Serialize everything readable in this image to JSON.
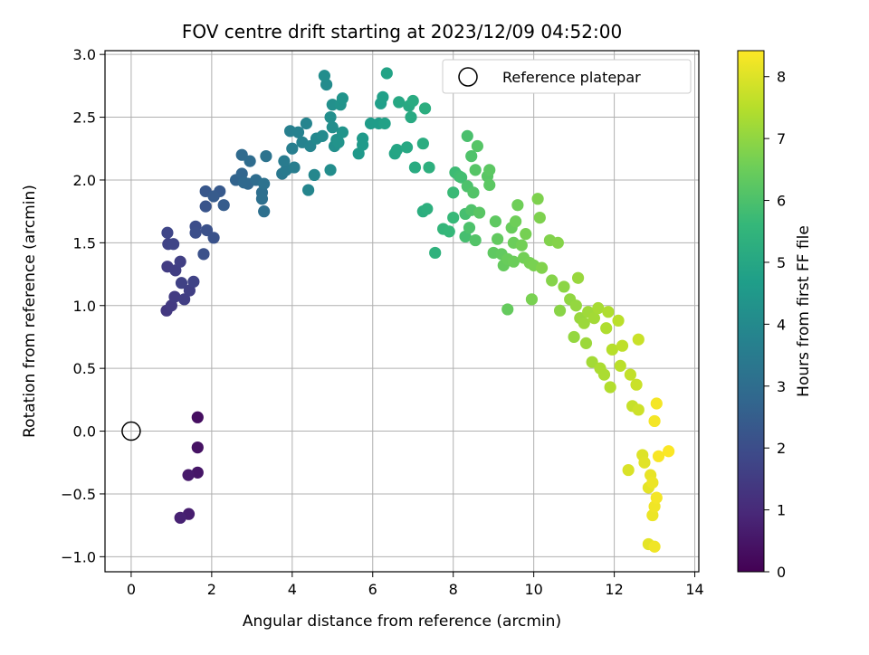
{
  "chart_data": {
    "type": "scatter",
    "title": "FOV centre drift starting at 2023/12/09 04:52:00",
    "xlabel": "Angular distance from reference (arcmin)",
    "ylabel": "Rotation from reference (arcmin)",
    "xlim": [
      -0.65,
      14.1
    ],
    "ylim": [
      -1.12,
      3.03
    ],
    "xticks": [
      0,
      2,
      4,
      6,
      8,
      10,
      12,
      14
    ],
    "xtick_labels": [
      "0",
      "2",
      "4",
      "6",
      "8",
      "10",
      "12",
      "14"
    ],
    "yticks": [
      -1.0,
      -0.5,
      0.0,
      0.5,
      1.0,
      1.5,
      2.0,
      2.5,
      3.0
    ],
    "ytick_labels": [
      "−1.0",
      "−0.5",
      "0.0",
      "0.5",
      "1.0",
      "1.5",
      "2.0",
      "2.5",
      "3.0"
    ],
    "grid": true,
    "legend": {
      "position": "upper-right",
      "entries": [
        "Reference platepar"
      ]
    },
    "reference_point": {
      "x": 0.0,
      "y": 0.0,
      "marker": "open-circle",
      "color": "#000000"
    },
    "colorbar": {
      "label": "Hours from first FF file",
      "range": [
        0,
        8.42
      ],
      "ticks": [
        0,
        1,
        2,
        3,
        4,
        5,
        6,
        7,
        8
      ],
      "tick_labels": [
        "0",
        "1",
        "2",
        "3",
        "4",
        "5",
        "6",
        "7",
        "8"
      ],
      "colormap": "viridis",
      "colormap_stops": [
        "#440154",
        "#482878",
        "#3e4989",
        "#31688e",
        "#26828e",
        "#1f9e89",
        "#35b779",
        "#6ece58",
        "#b5de2b",
        "#fde725"
      ]
    },
    "series": [
      {
        "points": [
          {
            "x": 1.65,
            "y": 0.11,
            "t": 0.3
          },
          {
            "x": 1.65,
            "y": -0.13,
            "t": 0.4
          },
          {
            "x": 1.65,
            "y": -0.33,
            "t": 0.5
          },
          {
            "x": 1.42,
            "y": -0.35,
            "t": 0.6
          },
          {
            "x": 1.43,
            "y": -0.66,
            "t": 0.7
          },
          {
            "x": 1.22,
            "y": -0.69,
            "t": 0.8
          },
          {
            "x": 0.88,
            "y": 0.96,
            "t": 1.4
          },
          {
            "x": 1.0,
            "y": 1.0,
            "t": 1.45
          },
          {
            "x": 1.08,
            "y": 1.07,
            "t": 1.5
          },
          {
            "x": 1.32,
            "y": 1.05,
            "t": 1.55
          },
          {
            "x": 1.45,
            "y": 1.12,
            "t": 1.6
          },
          {
            "x": 1.25,
            "y": 1.18,
            "t": 1.65
          },
          {
            "x": 1.55,
            "y": 1.19,
            "t": 1.7
          },
          {
            "x": 0.9,
            "y": 1.31,
            "t": 1.5
          },
          {
            "x": 1.1,
            "y": 1.28,
            "t": 1.55
          },
          {
            "x": 1.22,
            "y": 1.35,
            "t": 1.6
          },
          {
            "x": 0.92,
            "y": 1.49,
            "t": 1.7
          },
          {
            "x": 1.05,
            "y": 1.49,
            "t": 1.75
          },
          {
            "x": 0.9,
            "y": 1.58,
            "t": 1.8
          },
          {
            "x": 1.6,
            "y": 1.63,
            "t": 2.0
          },
          {
            "x": 1.6,
            "y": 1.58,
            "t": 2.05
          },
          {
            "x": 1.88,
            "y": 1.6,
            "t": 2.1
          },
          {
            "x": 2.05,
            "y": 1.54,
            "t": 2.15
          },
          {
            "x": 1.8,
            "y": 1.41,
            "t": 2.1
          },
          {
            "x": 1.85,
            "y": 1.79,
            "t": 2.2
          },
          {
            "x": 1.85,
            "y": 1.91,
            "t": 2.3
          },
          {
            "x": 2.2,
            "y": 1.91,
            "t": 2.35
          },
          {
            "x": 2.05,
            "y": 1.87,
            "t": 2.4
          },
          {
            "x": 2.3,
            "y": 1.8,
            "t": 2.45
          },
          {
            "x": 2.6,
            "y": 2.0,
            "t": 2.7
          },
          {
            "x": 2.75,
            "y": 2.05,
            "t": 2.75
          },
          {
            "x": 2.9,
            "y": 1.97,
            "t": 2.8
          },
          {
            "x": 2.8,
            "y": 1.98,
            "t": 2.85
          },
          {
            "x": 2.75,
            "y": 2.2,
            "t": 2.9
          },
          {
            "x": 2.95,
            "y": 2.15,
            "t": 2.95
          },
          {
            "x": 3.1,
            "y": 2.0,
            "t": 3.0
          },
          {
            "x": 3.25,
            "y": 1.9,
            "t": 3.05
          },
          {
            "x": 3.25,
            "y": 1.85,
            "t": 3.1
          },
          {
            "x": 3.3,
            "y": 1.75,
            "t": 3.1
          },
          {
            "x": 3.3,
            "y": 1.97,
            "t": 3.15
          },
          {
            "x": 3.35,
            "y": 2.19,
            "t": 3.2
          },
          {
            "x": 3.75,
            "y": 2.05,
            "t": 3.4
          },
          {
            "x": 3.85,
            "y": 2.08,
            "t": 3.45
          },
          {
            "x": 3.8,
            "y": 2.15,
            "t": 3.5
          },
          {
            "x": 4.05,
            "y": 2.1,
            "t": 3.55
          },
          {
            "x": 4.0,
            "y": 2.25,
            "t": 3.6
          },
          {
            "x": 3.95,
            "y": 2.39,
            "t": 3.65
          },
          {
            "x": 4.15,
            "y": 2.38,
            "t": 3.7
          },
          {
            "x": 4.25,
            "y": 2.3,
            "t": 3.75
          },
          {
            "x": 4.35,
            "y": 2.45,
            "t": 3.8
          },
          {
            "x": 4.45,
            "y": 2.27,
            "t": 3.8
          },
          {
            "x": 4.4,
            "y": 1.92,
            "t": 3.85
          },
          {
            "x": 4.55,
            "y": 2.04,
            "t": 3.9
          },
          {
            "x": 4.6,
            "y": 2.33,
            "t": 3.95
          },
          {
            "x": 4.75,
            "y": 2.35,
            "t": 4.0
          },
          {
            "x": 4.85,
            "y": 2.76,
            "t": 4.05
          },
          {
            "x": 4.8,
            "y": 2.83,
            "t": 4.1
          },
          {
            "x": 4.95,
            "y": 2.08,
            "t": 4.1
          },
          {
            "x": 5.0,
            "y": 2.42,
            "t": 4.15
          },
          {
            "x": 4.95,
            "y": 2.5,
            "t": 4.15
          },
          {
            "x": 5.0,
            "y": 2.6,
            "t": 4.2
          },
          {
            "x": 5.05,
            "y": 2.27,
            "t": 4.2
          },
          {
            "x": 5.1,
            "y": 2.32,
            "t": 4.25
          },
          {
            "x": 5.15,
            "y": 2.3,
            "t": 4.3
          },
          {
            "x": 5.2,
            "y": 2.6,
            "t": 4.3
          },
          {
            "x": 5.25,
            "y": 2.65,
            "t": 4.35
          },
          {
            "x": 5.25,
            "y": 2.38,
            "t": 4.35
          },
          {
            "x": 5.65,
            "y": 2.21,
            "t": 4.5
          },
          {
            "x": 5.75,
            "y": 2.28,
            "t": 4.55
          },
          {
            "x": 5.75,
            "y": 2.33,
            "t": 4.55
          },
          {
            "x": 5.95,
            "y": 2.45,
            "t": 4.6
          },
          {
            "x": 6.15,
            "y": 2.45,
            "t": 4.65
          },
          {
            "x": 6.2,
            "y": 2.61,
            "t": 4.7
          },
          {
            "x": 6.25,
            "y": 2.66,
            "t": 4.75
          },
          {
            "x": 6.3,
            "y": 2.45,
            "t": 4.8
          },
          {
            "x": 6.35,
            "y": 2.85,
            "t": 4.85
          },
          {
            "x": 6.55,
            "y": 2.21,
            "t": 4.9
          },
          {
            "x": 6.6,
            "y": 2.24,
            "t": 4.95
          },
          {
            "x": 6.65,
            "y": 2.62,
            "t": 5.0
          },
          {
            "x": 6.85,
            "y": 2.26,
            "t": 5.05
          },
          {
            "x": 6.9,
            "y": 2.59,
            "t": 5.1
          },
          {
            "x": 6.95,
            "y": 2.5,
            "t": 5.1
          },
          {
            "x": 7.0,
            "y": 2.63,
            "t": 5.15
          },
          {
            "x": 7.05,
            "y": 2.1,
            "t": 5.15
          },
          {
            "x": 7.25,
            "y": 2.29,
            "t": 5.2
          },
          {
            "x": 7.25,
            "y": 1.75,
            "t": 5.25
          },
          {
            "x": 7.3,
            "y": 2.57,
            "t": 5.25
          },
          {
            "x": 7.35,
            "y": 1.77,
            "t": 5.3
          },
          {
            "x": 7.4,
            "y": 2.1,
            "t": 5.3
          },
          {
            "x": 7.55,
            "y": 1.42,
            "t": 5.4
          },
          {
            "x": 7.75,
            "y": 1.61,
            "t": 5.55
          },
          {
            "x": 7.9,
            "y": 1.59,
            "t": 5.6
          },
          {
            "x": 8.0,
            "y": 1.7,
            "t": 5.65
          },
          {
            "x": 8.0,
            "y": 1.9,
            "t": 5.7
          },
          {
            "x": 8.05,
            "y": 2.06,
            "t": 5.75
          },
          {
            "x": 8.15,
            "y": 2.03,
            "t": 5.8
          },
          {
            "x": 8.2,
            "y": 2.02,
            "t": 5.85
          },
          {
            "x": 8.3,
            "y": 1.55,
            "t": 5.9
          },
          {
            "x": 8.3,
            "y": 1.73,
            "t": 5.9
          },
          {
            "x": 8.35,
            "y": 2.35,
            "t": 5.95
          },
          {
            "x": 8.35,
            "y": 1.95,
            "t": 6.0
          },
          {
            "x": 8.4,
            "y": 1.62,
            "t": 6.0
          },
          {
            "x": 8.45,
            "y": 1.76,
            "t": 6.05
          },
          {
            "x": 8.45,
            "y": 2.19,
            "t": 6.05
          },
          {
            "x": 8.5,
            "y": 1.9,
            "t": 6.1
          },
          {
            "x": 8.55,
            "y": 1.52,
            "t": 6.1
          },
          {
            "x": 8.55,
            "y": 2.08,
            "t": 6.15
          },
          {
            "x": 8.6,
            "y": 2.27,
            "t": 6.15
          },
          {
            "x": 8.65,
            "y": 1.74,
            "t": 6.2
          },
          {
            "x": 8.85,
            "y": 2.03,
            "t": 6.2
          },
          {
            "x": 8.9,
            "y": 1.96,
            "t": 6.25
          },
          {
            "x": 8.9,
            "y": 2.08,
            "t": 6.25
          },
          {
            "x": 9.0,
            "y": 1.42,
            "t": 6.3
          },
          {
            "x": 9.05,
            "y": 1.67,
            "t": 6.3
          },
          {
            "x": 9.1,
            "y": 1.53,
            "t": 6.35
          },
          {
            "x": 9.2,
            "y": 1.41,
            "t": 6.35
          },
          {
            "x": 9.25,
            "y": 1.32,
            "t": 6.4
          },
          {
            "x": 9.35,
            "y": 0.97,
            "t": 6.4
          },
          {
            "x": 9.35,
            "y": 1.37,
            "t": 6.45
          },
          {
            "x": 9.45,
            "y": 1.62,
            "t": 6.45
          },
          {
            "x": 9.5,
            "y": 1.35,
            "t": 6.5
          },
          {
            "x": 9.5,
            "y": 1.5,
            "t": 6.5
          },
          {
            "x": 9.55,
            "y": 1.67,
            "t": 6.55
          },
          {
            "x": 9.6,
            "y": 1.8,
            "t": 6.55
          },
          {
            "x": 9.7,
            "y": 1.48,
            "t": 6.6
          },
          {
            "x": 9.75,
            "y": 1.38,
            "t": 6.6
          },
          {
            "x": 9.8,
            "y": 1.57,
            "t": 6.65
          },
          {
            "x": 9.9,
            "y": 1.34,
            "t": 6.65
          },
          {
            "x": 9.95,
            "y": 1.05,
            "t": 6.7
          },
          {
            "x": 10.0,
            "y": 1.32,
            "t": 6.7
          },
          {
            "x": 10.1,
            "y": 1.85,
            "t": 6.75
          },
          {
            "x": 10.15,
            "y": 1.7,
            "t": 6.75
          },
          {
            "x": 10.2,
            "y": 1.3,
            "t": 6.8
          },
          {
            "x": 10.4,
            "y": 1.52,
            "t": 6.8
          },
          {
            "x": 10.45,
            "y": 1.2,
            "t": 6.85
          },
          {
            "x": 10.6,
            "y": 1.5,
            "t": 6.85
          },
          {
            "x": 10.65,
            "y": 0.96,
            "t": 6.9
          },
          {
            "x": 10.75,
            "y": 1.15,
            "t": 6.95
          },
          {
            "x": 10.9,
            "y": 1.05,
            "t": 7.0
          },
          {
            "x": 11.0,
            "y": 0.75,
            "t": 7.05
          },
          {
            "x": 11.05,
            "y": 1.0,
            "t": 7.05
          },
          {
            "x": 11.1,
            "y": 1.22,
            "t": 7.1
          },
          {
            "x": 11.15,
            "y": 0.9,
            "t": 7.1
          },
          {
            "x": 11.25,
            "y": 0.86,
            "t": 7.15
          },
          {
            "x": 11.3,
            "y": 0.7,
            "t": 7.15
          },
          {
            "x": 11.35,
            "y": 0.95,
            "t": 7.2
          },
          {
            "x": 11.45,
            "y": 0.55,
            "t": 7.25
          },
          {
            "x": 11.5,
            "y": 0.9,
            "t": 7.25
          },
          {
            "x": 11.6,
            "y": 0.98,
            "t": 7.3
          },
          {
            "x": 11.65,
            "y": 0.5,
            "t": 7.35
          },
          {
            "x": 11.75,
            "y": 0.45,
            "t": 7.35
          },
          {
            "x": 11.8,
            "y": 0.82,
            "t": 7.4
          },
          {
            "x": 11.85,
            "y": 0.95,
            "t": 7.4
          },
          {
            "x": 11.9,
            "y": 0.35,
            "t": 7.45
          },
          {
            "x": 11.95,
            "y": 0.65,
            "t": 7.5
          },
          {
            "x": 12.1,
            "y": 0.88,
            "t": 7.55
          },
          {
            "x": 12.15,
            "y": 0.52,
            "t": 7.55
          },
          {
            "x": 12.2,
            "y": 0.68,
            "t": 7.6
          },
          {
            "x": 12.4,
            "y": 0.45,
            "t": 7.65
          },
          {
            "x": 12.45,
            "y": 0.2,
            "t": 7.7
          },
          {
            "x": 12.55,
            "y": 0.37,
            "t": 7.75
          },
          {
            "x": 12.6,
            "y": 0.73,
            "t": 7.75
          },
          {
            "x": 12.6,
            "y": 0.17,
            "t": 7.8
          },
          {
            "x": 12.35,
            "y": -0.31,
            "t": 7.95
          },
          {
            "x": 12.7,
            "y": -0.19,
            "t": 8.0
          },
          {
            "x": 12.75,
            "y": -0.25,
            "t": 8.05
          },
          {
            "x": 12.85,
            "y": -0.45,
            "t": 8.1
          },
          {
            "x": 12.85,
            "y": -0.9,
            "t": 8.1
          },
          {
            "x": 12.9,
            "y": -0.35,
            "t": 8.15
          },
          {
            "x": 12.95,
            "y": -0.67,
            "t": 8.2
          },
          {
            "x": 12.95,
            "y": -0.41,
            "t": 8.2
          },
          {
            "x": 13.0,
            "y": -0.6,
            "t": 8.25
          },
          {
            "x": 13.0,
            "y": -0.92,
            "t": 8.25
          },
          {
            "x": 13.05,
            "y": -0.53,
            "t": 8.3
          },
          {
            "x": 13.05,
            "y": 0.22,
            "t": 8.3
          },
          {
            "x": 13.0,
            "y": 0.08,
            "t": 8.3
          },
          {
            "x": 13.1,
            "y": -0.2,
            "t": 8.35
          },
          {
            "x": 13.35,
            "y": -0.16,
            "t": 8.4
          }
        ]
      }
    ]
  }
}
